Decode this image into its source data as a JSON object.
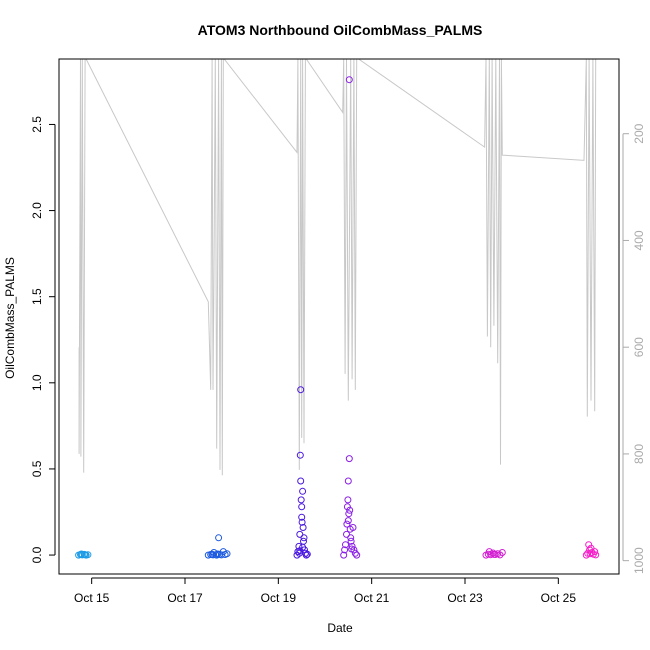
{
  "chart_data": {
    "type": "scatter",
    "title": "ATOM3 Northbound OilCombMass_PALMS",
    "xlabel": "Date",
    "ylabel": "OilCombMass_PALMS",
    "x_ticks": [
      {
        "day": 15,
        "label": "Oct 15"
      },
      {
        "day": 17,
        "label": "Oct 17"
      },
      {
        "day": 19,
        "label": "Oct 19"
      },
      {
        "day": 21,
        "label": "Oct 21"
      },
      {
        "day": 23,
        "label": "Oct 23"
      },
      {
        "day": 25,
        "label": "Oct 25"
      }
    ],
    "xlim": [
      14.3,
      26.3
    ],
    "ylim": [
      -0.11,
      2.88
    ],
    "y_ticks": [
      0.0,
      0.5,
      1.0,
      1.5,
      2.0,
      2.5
    ],
    "y_tick_labels": [
      "0.0",
      "0.5",
      "1.0",
      "1.5",
      "2.0",
      "2.5"
    ],
    "right_axis": {
      "ticks": [
        200,
        400,
        600,
        800,
        1000
      ],
      "tick_labels": [
        "200",
        "400",
        "600",
        "800",
        "1000"
      ],
      "range": [
        1025,
        60
      ],
      "color": "#aaaaaa"
    },
    "grid": false,
    "series": [
      {
        "color": "#1e9be6",
        "points": [
          [
            14.72,
            0.0
          ],
          [
            14.76,
            0.003
          ],
          [
            14.8,
            0.001
          ],
          [
            14.84,
            0.004
          ],
          [
            14.88,
            0.0
          ],
          [
            14.92,
            0.002
          ],
          [
            14.78,
            0.006
          ],
          [
            14.86,
            0.002
          ]
        ]
      },
      {
        "color": "#1c5ae0",
        "points": [
          [
            17.5,
            0.0
          ],
          [
            17.55,
            0.003
          ],
          [
            17.6,
            0.001
          ],
          [
            17.62,
            0.015
          ],
          [
            17.66,
            0.002
          ],
          [
            17.7,
            0.006
          ],
          [
            17.72,
            0.1
          ],
          [
            17.74,
            0.004
          ],
          [
            17.78,
            0.001
          ],
          [
            17.82,
            0.02
          ],
          [
            17.86,
            0.003
          ],
          [
            17.9,
            0.008
          ],
          [
            17.58,
            0.005
          ],
          [
            17.68,
            0.0
          ]
        ]
      },
      {
        "color": "#4a18e0",
        "points": [
          [
            19.4,
            0.0
          ],
          [
            19.42,
            0.02
          ],
          [
            19.44,
            0.05
          ],
          [
            19.45,
            0.01
          ],
          [
            19.46,
            0.12
          ],
          [
            19.47,
            0.58
          ],
          [
            19.48,
            0.43
          ],
          [
            19.48,
            0.96
          ],
          [
            19.49,
            0.32
          ],
          [
            19.5,
            0.28
          ],
          [
            19.5,
            0.22
          ],
          [
            19.51,
            0.19
          ],
          [
            19.52,
            0.37
          ],
          [
            19.53,
            0.16
          ],
          [
            19.54,
            0.08
          ],
          [
            19.55,
            0.1
          ],
          [
            19.56,
            0.03
          ],
          [
            19.58,
            0.01
          ],
          [
            19.6,
            0.0
          ],
          [
            19.62,
            0.005
          ],
          [
            19.46,
            0.025
          ],
          [
            19.52,
            0.045
          ]
        ]
      },
      {
        "color": "#8a1ee6",
        "points": [
          [
            20.4,
            0.0
          ],
          [
            20.42,
            0.03
          ],
          [
            20.44,
            0.06
          ],
          [
            20.46,
            0.12
          ],
          [
            20.48,
            0.28
          ],
          [
            20.49,
            0.32
          ],
          [
            20.5,
            0.43
          ],
          [
            20.5,
            0.2
          ],
          [
            20.52,
            0.56
          ],
          [
            20.52,
            2.76
          ],
          [
            20.53,
            0.26
          ],
          [
            20.54,
            0.15
          ],
          [
            20.55,
            0.1
          ],
          [
            20.56,
            0.08
          ],
          [
            20.58,
            0.05
          ],
          [
            20.6,
            0.16
          ],
          [
            20.62,
            0.03
          ],
          [
            20.65,
            0.01
          ],
          [
            20.68,
            0.0
          ],
          [
            20.47,
            0.18
          ],
          [
            20.51,
            0.24
          ],
          [
            20.57,
            0.035
          ]
        ]
      },
      {
        "color": "#d21ed2",
        "points": [
          [
            23.45,
            0.0
          ],
          [
            23.5,
            0.005
          ],
          [
            23.55,
            0.002
          ],
          [
            23.6,
            0.012
          ],
          [
            23.65,
            0.003
          ],
          [
            23.7,
            0.008
          ],
          [
            23.75,
            0.001
          ],
          [
            23.8,
            0.015
          ],
          [
            23.52,
            0.02
          ],
          [
            23.62,
            0.004
          ]
        ]
      },
      {
        "color": "#f51ec8",
        "points": [
          [
            25.6,
            0.0
          ],
          [
            25.63,
            0.01
          ],
          [
            25.65,
            0.06
          ],
          [
            25.67,
            0.03
          ],
          [
            25.7,
            0.04
          ],
          [
            25.72,
            0.015
          ],
          [
            25.75,
            0.005
          ],
          [
            25.78,
            0.02
          ],
          [
            25.8,
            0.001
          ],
          [
            25.68,
            0.008
          ]
        ]
      }
    ],
    "pressure_trace": {
      "color": "#c8c8c8",
      "axis": "right",
      "points": [
        [
          14.73,
          600
        ],
        [
          14.73,
          800
        ],
        [
          14.76,
          60
        ],
        [
          14.77,
          805
        ],
        [
          14.8,
          60
        ],
        [
          14.83,
          835
        ],
        [
          14.86,
          60
        ],
        [
          14.88,
          60
        ],
        [
          17.5,
          515
        ],
        [
          17.55,
          680
        ],
        [
          17.58,
          60
        ],
        [
          17.6,
          680
        ],
        [
          17.62,
          480
        ],
        [
          17.65,
          60
        ],
        [
          17.68,
          790
        ],
        [
          17.72,
          60
        ],
        [
          17.75,
          830
        ],
        [
          17.78,
          60
        ],
        [
          17.8,
          840
        ],
        [
          17.82,
          60
        ],
        [
          17.84,
          60
        ],
        [
          19.4,
          235
        ],
        [
          19.42,
          60
        ],
        [
          19.45,
          830
        ],
        [
          19.48,
          60
        ],
        [
          19.5,
          770
        ],
        [
          19.52,
          60
        ],
        [
          19.55,
          780
        ],
        [
          19.58,
          60
        ],
        [
          19.6,
          60
        ],
        [
          20.38,
          160
        ],
        [
          20.4,
          60
        ],
        [
          20.43,
          650
        ],
        [
          20.46,
          60
        ],
        [
          20.5,
          700
        ],
        [
          20.55,
          60
        ],
        [
          20.58,
          660
        ],
        [
          20.62,
          60
        ],
        [
          20.65,
          680
        ],
        [
          20.68,
          60
        ],
        [
          20.72,
          60
        ],
        [
          23.42,
          225
        ],
        [
          23.45,
          60
        ],
        [
          23.48,
          580
        ],
        [
          23.52,
          60
        ],
        [
          23.55,
          600
        ],
        [
          23.58,
          60
        ],
        [
          23.62,
          560
        ],
        [
          23.66,
          60
        ],
        [
          23.7,
          630
        ],
        [
          23.74,
          60
        ],
        [
          23.76,
          820
        ],
        [
          23.78,
          60
        ],
        [
          23.8,
          240
        ],
        [
          25.55,
          250
        ],
        [
          25.6,
          60
        ],
        [
          25.62,
          730
        ],
        [
          25.66,
          60
        ],
        [
          25.7,
          700
        ],
        [
          25.74,
          60
        ],
        [
          25.78,
          720
        ],
        [
          25.8,
          60
        ],
        [
          25.82,
          60
        ]
      ]
    }
  }
}
